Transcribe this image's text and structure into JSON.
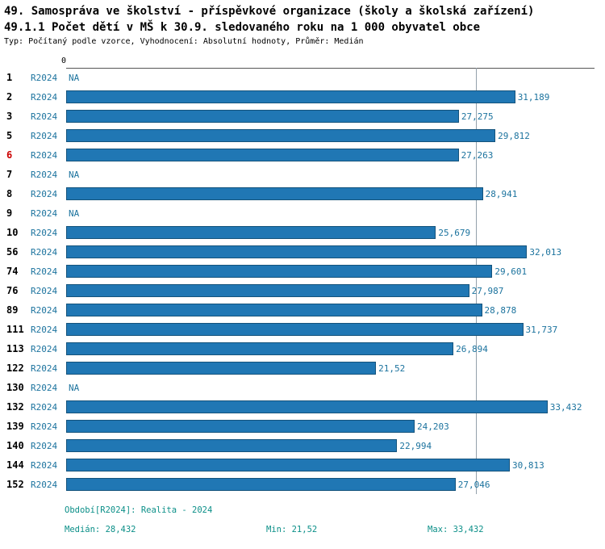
{
  "header": {
    "title1": "49. Samospráva ve školství - příspěvkové organizace (školy a školská zařízení)",
    "title2": "49.1.1 Počet dětí v MŠ k 30.9. sledovaného roku na 1 000 obyvatel obce",
    "meta": "Typ: Počítaný podle vzorce, Vyhodnocení: Absolutní hodnoty, Průměr: Medián"
  },
  "chart_data": {
    "type": "bar",
    "orientation": "horizontal",
    "title": "49.1.1 Počet dětí v MŠ k 30.9. sledovaného roku na 1 000 obyvatel obce",
    "zero_label": "0",
    "xlim": [
      0,
      35
    ],
    "grid": "single-median-gridline",
    "legend_position": "bottom",
    "median_value": 28.432,
    "na_label": "NA",
    "categories": [
      "1",
      "2",
      "3",
      "5",
      "6",
      "7",
      "8",
      "9",
      "10",
      "56",
      "74",
      "76",
      "89",
      "111",
      "113",
      "122",
      "130",
      "132",
      "139",
      "140",
      "144",
      "152"
    ],
    "highlighted_categories": [
      "6"
    ],
    "series": [
      {
        "name": "R2024",
        "values": [
          null,
          31.189,
          27.275,
          29.812,
          27.263,
          null,
          28.941,
          null,
          25.679,
          32.013,
          29.601,
          27.987,
          28.878,
          31.737,
          26.894,
          21.52,
          null,
          33.432,
          24.203,
          22.994,
          30.813,
          27.046
        ]
      }
    ],
    "value_labels": [
      "NA",
      "31,189",
      "27,275",
      "29,812",
      "27,263",
      "NA",
      "28,941",
      "NA",
      "25,679",
      "32,013",
      "29,601",
      "27,987",
      "28,878",
      "31,737",
      "26,894",
      "21,52",
      "NA",
      "33,432",
      "24,203",
      "22,994",
      "30,813",
      "27,046"
    ]
  },
  "legend": {
    "period": "Období[R2024]: Realita - 2024",
    "median": "Medián: 28,432",
    "min": "Min: 21,52",
    "max": "Max: 33,432"
  },
  "colors": {
    "bar_fill": "#2077b4",
    "bar_border": "#14537c",
    "value_text": "#1c739e",
    "series_text": "#1c739e",
    "legend_text": "#0b8f88",
    "highlight_row_text": "#cc0000",
    "median_line": "#93a1ab"
  }
}
